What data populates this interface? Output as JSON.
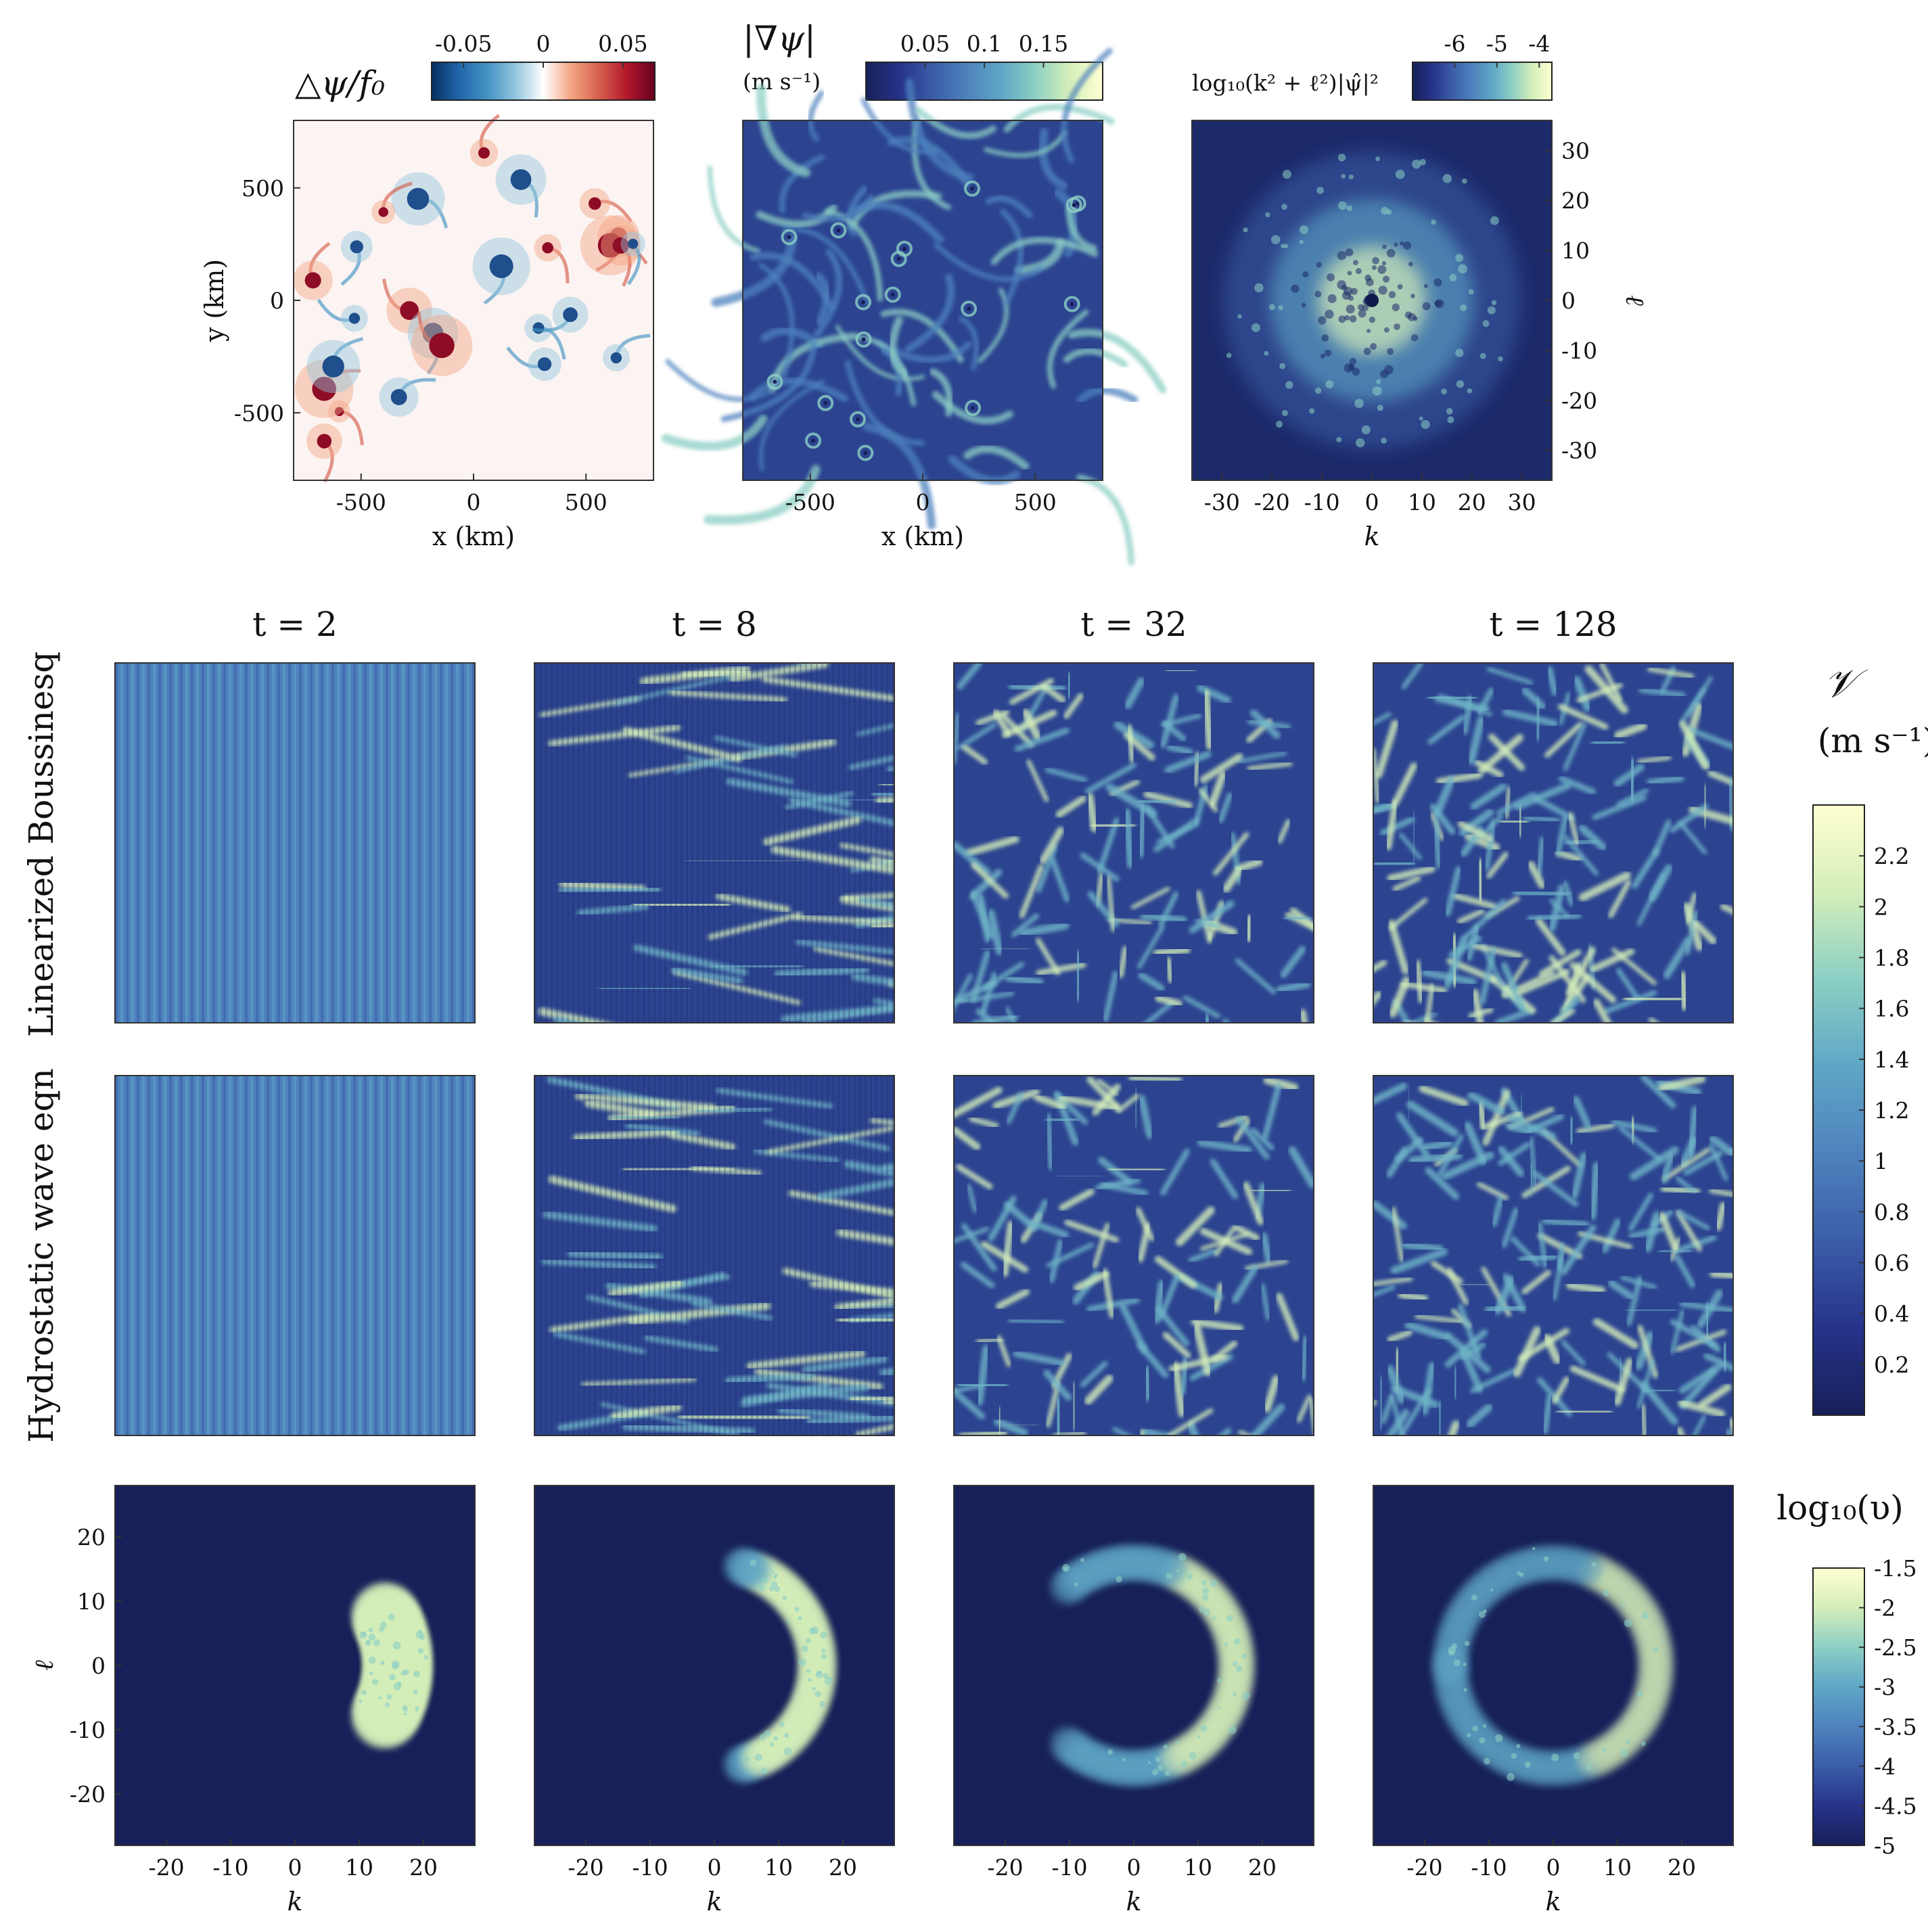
{
  "top": {
    "vort": {
      "title": "△ψ/f₀",
      "cbar_ticks": [
        "-0.05",
        "0",
        "0.05"
      ],
      "cbar_values": [
        -0.05,
        0,
        0.05
      ],
      "cbar_range": [
        -0.07,
        0.07
      ],
      "xlabel": "x (km)",
      "ylabel": "y (km)",
      "xticks": [
        "-500",
        "0",
        "500"
      ],
      "yticks": [
        "500",
        "0",
        "-500"
      ],
      "xlim": [
        -800,
        800
      ],
      "ylim": [
        -800,
        800
      ],
      "colormap": [
        "#053061",
        "#2166ac",
        "#4393c3",
        "#92c5de",
        "#ffffff",
        "#f4a582",
        "#d6604d",
        "#b2182b",
        "#67001f"
      ]
    },
    "speed": {
      "title": "|∇ψ|",
      "unit": "(m s⁻¹)",
      "cbar_ticks": [
        "0.05",
        "0.1",
        "0.15"
      ],
      "cbar_values": [
        0.05,
        0.1,
        0.15
      ],
      "cbar_range": [
        0,
        0.2
      ],
      "xlabel": "x (km)",
      "xticks": [
        "-500",
        "0",
        "500"
      ],
      "xlim": [
        -800,
        800
      ]
    },
    "spectrum": {
      "title": "log₁₀(k² + ℓ²)|ψ̂|²",
      "cbar_ticks": [
        "-6",
        "-5",
        "-4"
      ],
      "cbar_values": [
        -6,
        -5,
        -4
      ],
      "cbar_range": [
        -7,
        -3.7
      ],
      "xlabel": "k",
      "ylabel": "ℓ",
      "xticks": [
        "-30",
        "-20",
        "-10",
        "0",
        "10",
        "20",
        "30"
      ],
      "yticks": [
        "30",
        "20",
        "10",
        "0",
        "-10",
        "-20",
        "-30"
      ],
      "xlim": [
        -36,
        36
      ],
      "ylim": [
        -36,
        36
      ]
    }
  },
  "times": [
    "t = 2",
    "t = 8",
    "t = 32",
    "t = 128"
  ],
  "row_labels": [
    "Linearized Boussinesq",
    "Hydrostatic wave eqn"
  ],
  "speed_cbar": {
    "label": "𝒱",
    "unit": "(m s⁻¹)",
    "ticks": [
      "2.2",
      "2",
      "1.8",
      "1.6",
      "1.4",
      "1.2",
      "1",
      "0.8",
      "0.6",
      "0.4",
      "0.2"
    ],
    "values": [
      2.2,
      2,
      1.8,
      1.6,
      1.4,
      1.2,
      1,
      0.8,
      0.6,
      0.4,
      0.2
    ],
    "range": [
      0,
      2.4
    ]
  },
  "spec_cbar": {
    "label": "log₁₀(υ)",
    "ticks": [
      "-1.5",
      "-2",
      "-2.5",
      "-3",
      "-3.5",
      "-4",
      "-4.5",
      "-5"
    ],
    "values": [
      -1.5,
      -2,
      -2.5,
      -3,
      -3.5,
      -4,
      -4.5,
      -5
    ],
    "range": [
      -5,
      -1.5
    ]
  },
  "bottom": {
    "xlabel": "k",
    "ylabel": "ℓ",
    "xticks": [
      "-20",
      "-10",
      "0",
      "10",
      "20"
    ],
    "yticks": [
      "20",
      "10",
      "0",
      "-10",
      "-20"
    ],
    "xlim": [
      -28,
      28
    ],
    "ylim": [
      -28,
      28
    ]
  },
  "colormap_parula_like": [
    "#172059",
    "#26338a",
    "#3b5da8",
    "#4e82bd",
    "#5fa6c6",
    "#8ccfc4",
    "#d4eeb9",
    "#ffffd2"
  ],
  "chart_data": [
    {
      "type": "heatmap",
      "title": "△ψ/f₀",
      "xlabel": "x (km)",
      "ylabel": "y (km)",
      "xlim": [
        -800,
        800
      ],
      "ylim": [
        -800,
        800
      ],
      "color_range": [
        -0.07,
        0.07
      ],
      "description_values": "relative vorticity field with coherent vortices"
    },
    {
      "type": "heatmap",
      "title": "|∇ψ|",
      "xlabel": "x (km)",
      "xlim": [
        -800,
        800
      ],
      "color_range": [
        0,
        0.2
      ]
    },
    {
      "type": "heatmap",
      "title": "log₁₀(k² + ℓ²)|ψ̂|²",
      "xlabel": "k",
      "ylabel": "ℓ",
      "xlim": [
        -36,
        36
      ],
      "ylim": [
        -36,
        36
      ],
      "color_range": [
        -7,
        -3.7
      ]
    },
    {
      "type": "heatmap",
      "series": [
        {
          "name": "Linearized Boussinesq",
          "times": [
            2,
            8,
            32,
            128
          ]
        },
        {
          "name": "Hydrostatic wave eqn",
          "times": [
            2,
            8,
            32,
            128
          ]
        }
      ],
      "color_range": [
        0,
        2.4
      ]
    },
    {
      "type": "heatmap",
      "xlabel": "k",
      "ylabel": "ℓ",
      "xlim": [
        -28,
        28
      ],
      "ylim": [
        -28,
        28
      ],
      "color_range": [
        -5,
        -1.5
      ],
      "times": [
        2,
        8,
        32,
        128
      ],
      "ring_radius_k": 16,
      "ring_arc_extent_deg": [
        60,
        150,
        260,
        360
      ]
    }
  ]
}
